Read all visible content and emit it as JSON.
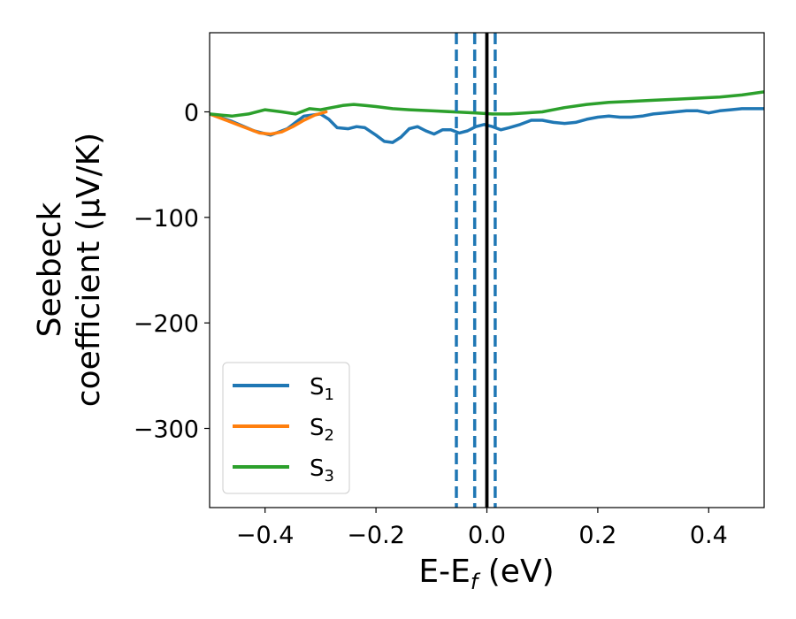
{
  "chart_data": {
    "type": "line",
    "xlabel": "E-E",
    "xlabel_sub": "f",
    "xlabel_unit": " (eV)",
    "ylabel_line1": "Seebeck",
    "ylabel_line2": "coefficient  (μV/K)",
    "xlim": [
      -0.5,
      0.5
    ],
    "ylim": [
      -375,
      75
    ],
    "xticks": [
      -0.4,
      -0.2,
      0.0,
      0.2,
      0.4
    ],
    "xtick_labels": [
      "−0.4",
      "−0.2",
      "0.0",
      "0.2",
      "0.4"
    ],
    "yticks": [
      0,
      -100,
      -200,
      -300
    ],
    "ytick_labels": [
      "0",
      "−100",
      "−200",
      "−300"
    ],
    "grid": false,
    "legend_position": "bottom-left",
    "vlines": [
      {
        "x": -0.055,
        "style": "dashed",
        "color": "#1f77b4"
      },
      {
        "x": -0.022,
        "style": "dashed",
        "color": "#1f77b4"
      },
      {
        "x": 0.015,
        "style": "dashed",
        "color": "#1f77b4"
      },
      {
        "x": 0.0,
        "style": "solid",
        "color": "#000000"
      }
    ],
    "series": [
      {
        "name": "S",
        "sub": "1",
        "color": "#1f77b4",
        "x": [
          -0.5,
          -0.46,
          -0.42,
          -0.39,
          -0.36,
          -0.33,
          -0.3,
          -0.285,
          -0.27,
          -0.25,
          -0.235,
          -0.22,
          -0.2,
          -0.185,
          -0.17,
          -0.155,
          -0.14,
          -0.125,
          -0.11,
          -0.095,
          -0.08,
          -0.065,
          -0.05,
          -0.035,
          -0.02,
          -0.005,
          0.01,
          0.025,
          0.04,
          0.06,
          0.08,
          0.1,
          0.12,
          0.14,
          0.16,
          0.18,
          0.2,
          0.22,
          0.24,
          0.26,
          0.28,
          0.3,
          0.32,
          0.34,
          0.36,
          0.38,
          0.4,
          0.42,
          0.44,
          0.46,
          0.48,
          0.5
        ],
        "y": [
          -2,
          -9,
          -18,
          -22,
          -16,
          -4,
          -2,
          -7,
          -15,
          -16,
          -14,
          -15,
          -22,
          -28,
          -29,
          -24,
          -16,
          -14,
          -18,
          -21,
          -17,
          -17,
          -20,
          -18,
          -14,
          -12,
          -14,
          -17,
          -15,
          -12,
          -8,
          -8,
          -10,
          -11,
          -10,
          -7,
          -5,
          -4,
          -5,
          -5,
          -4,
          -2,
          -1,
          0,
          1,
          1,
          -1,
          1,
          2,
          3,
          3,
          3
        ]
      },
      {
        "name": "S",
        "sub": "2",
        "color": "#ff7f0e",
        "x": [
          -0.5,
          -0.47,
          -0.44,
          -0.41,
          -0.39,
          -0.37,
          -0.35,
          -0.33,
          -0.31,
          -0.29
        ],
        "y": [
          -2,
          -8,
          -14,
          -20,
          -21,
          -19,
          -14,
          -8,
          -3,
          0
        ]
      },
      {
        "name": "S",
        "sub": "3",
        "color": "#2ca02c",
        "x": [
          -0.5,
          -0.46,
          -0.43,
          -0.4,
          -0.37,
          -0.345,
          -0.32,
          -0.3,
          -0.28,
          -0.26,
          -0.24,
          -0.22,
          -0.2,
          -0.17,
          -0.14,
          -0.1,
          -0.06,
          -0.02,
          0.01,
          0.04,
          0.07,
          0.1,
          0.14,
          0.18,
          0.22,
          0.26,
          0.3,
          0.34,
          0.38,
          0.42,
          0.46,
          0.5
        ],
        "y": [
          -2,
          -4,
          -2,
          2,
          0,
          -2,
          3,
          2,
          4,
          6,
          7,
          6,
          5,
          3,
          2,
          1,
          0,
          -1,
          -2,
          -2,
          -1,
          0,
          4,
          7,
          9,
          10,
          11,
          12,
          13,
          14,
          16,
          19
        ]
      }
    ]
  }
}
